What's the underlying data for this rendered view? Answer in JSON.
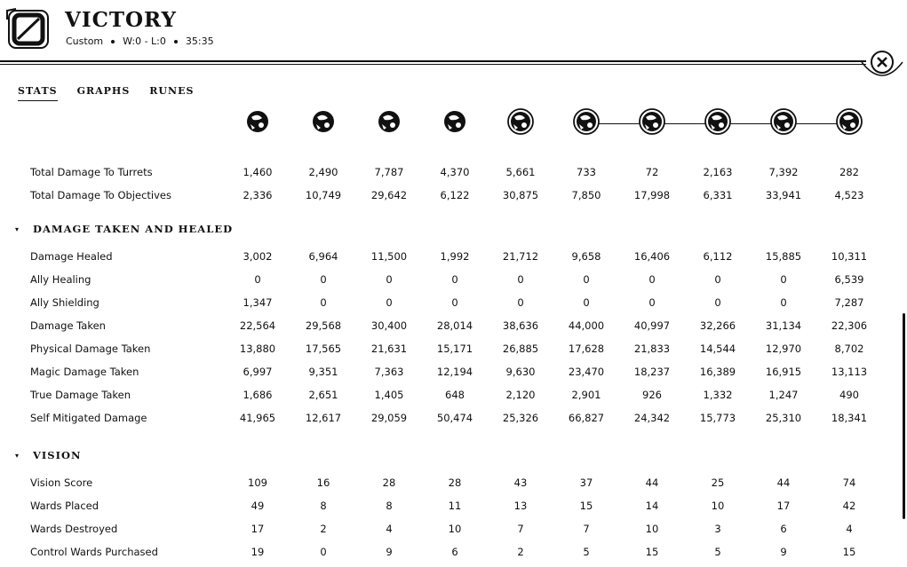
{
  "header": {
    "title": "VICTORY",
    "mode": "Custom",
    "record": "W:0 - L:0",
    "duration": "35:35"
  },
  "tabs": [
    "STATS",
    "GRAPHS",
    "RUNES"
  ],
  "active_tab": "STATS",
  "champions": [
    "champion-1",
    "champion-2",
    "champion-3",
    "champion-4",
    "champion-5",
    "champion-6",
    "champion-7",
    "champion-8",
    "champion-9",
    "champion-10"
  ],
  "rows_top": [
    {
      "label": "Total Damage To Turrets",
      "values": [
        "1,460",
        "2,490",
        "7,787",
        "4,370",
        "5,661",
        "733",
        "72",
        "2,163",
        "7,392",
        "282"
      ]
    },
    {
      "label": "Total Damage To Objectives",
      "values": [
        "2,336",
        "10,749",
        "29,642",
        "6,122",
        "30,875",
        "7,850",
        "17,998",
        "6,331",
        "33,941",
        "4,523"
      ]
    }
  ],
  "sections": [
    {
      "title": "DAMAGE TAKEN AND HEALED",
      "rows": [
        {
          "label": "Damage Healed",
          "values": [
            "3,002",
            "6,964",
            "11,500",
            "1,992",
            "21,712",
            "9,658",
            "16,406",
            "6,112",
            "15,885",
            "10,311"
          ]
        },
        {
          "label": "Ally Healing",
          "values": [
            "0",
            "0",
            "0",
            "0",
            "0",
            "0",
            "0",
            "0",
            "0",
            "6,539"
          ]
        },
        {
          "label": "Ally Shielding",
          "values": [
            "1,347",
            "0",
            "0",
            "0",
            "0",
            "0",
            "0",
            "0",
            "0",
            "7,287"
          ]
        },
        {
          "label": "Damage Taken",
          "values": [
            "22,564",
            "29,568",
            "30,400",
            "28,014",
            "38,636",
            "44,000",
            "40,997",
            "32,266",
            "31,134",
            "22,306"
          ]
        },
        {
          "label": "Physical Damage Taken",
          "values": [
            "13,880",
            "17,565",
            "21,631",
            "15,171",
            "26,885",
            "17,628",
            "21,833",
            "14,544",
            "12,970",
            "8,702"
          ]
        },
        {
          "label": "Magic Damage Taken",
          "values": [
            "6,997",
            "9,351",
            "7,363",
            "12,194",
            "9,630",
            "23,470",
            "18,237",
            "16,389",
            "16,915",
            "13,113"
          ]
        },
        {
          "label": "True Damage Taken",
          "values": [
            "1,686",
            "2,651",
            "1,405",
            "648",
            "2,120",
            "2,901",
            "926",
            "1,332",
            "1,247",
            "490"
          ]
        },
        {
          "label": "Self Mitigated Damage",
          "values": [
            "41,965",
            "12,617",
            "29,059",
            "50,474",
            "25,326",
            "66,827",
            "24,342",
            "15,773",
            "25,310",
            "18,341"
          ]
        }
      ]
    },
    {
      "title": "VISION",
      "rows": [
        {
          "label": "Vision Score",
          "values": [
            "109",
            "16",
            "28",
            "28",
            "43",
            "37",
            "44",
            "25",
            "44",
            "74"
          ]
        },
        {
          "label": "Wards Placed",
          "values": [
            "49",
            "8",
            "8",
            "11",
            "13",
            "15",
            "14",
            "10",
            "17",
            "42"
          ]
        },
        {
          "label": "Wards Destroyed",
          "values": [
            "17",
            "2",
            "4",
            "10",
            "7",
            "7",
            "10",
            "3",
            "6",
            "4"
          ]
        },
        {
          "label": "Control Wards Purchased",
          "values": [
            "19",
            "0",
            "9",
            "6",
            "2",
            "5",
            "15",
            "5",
            "9",
            "15"
          ]
        }
      ]
    }
  ]
}
